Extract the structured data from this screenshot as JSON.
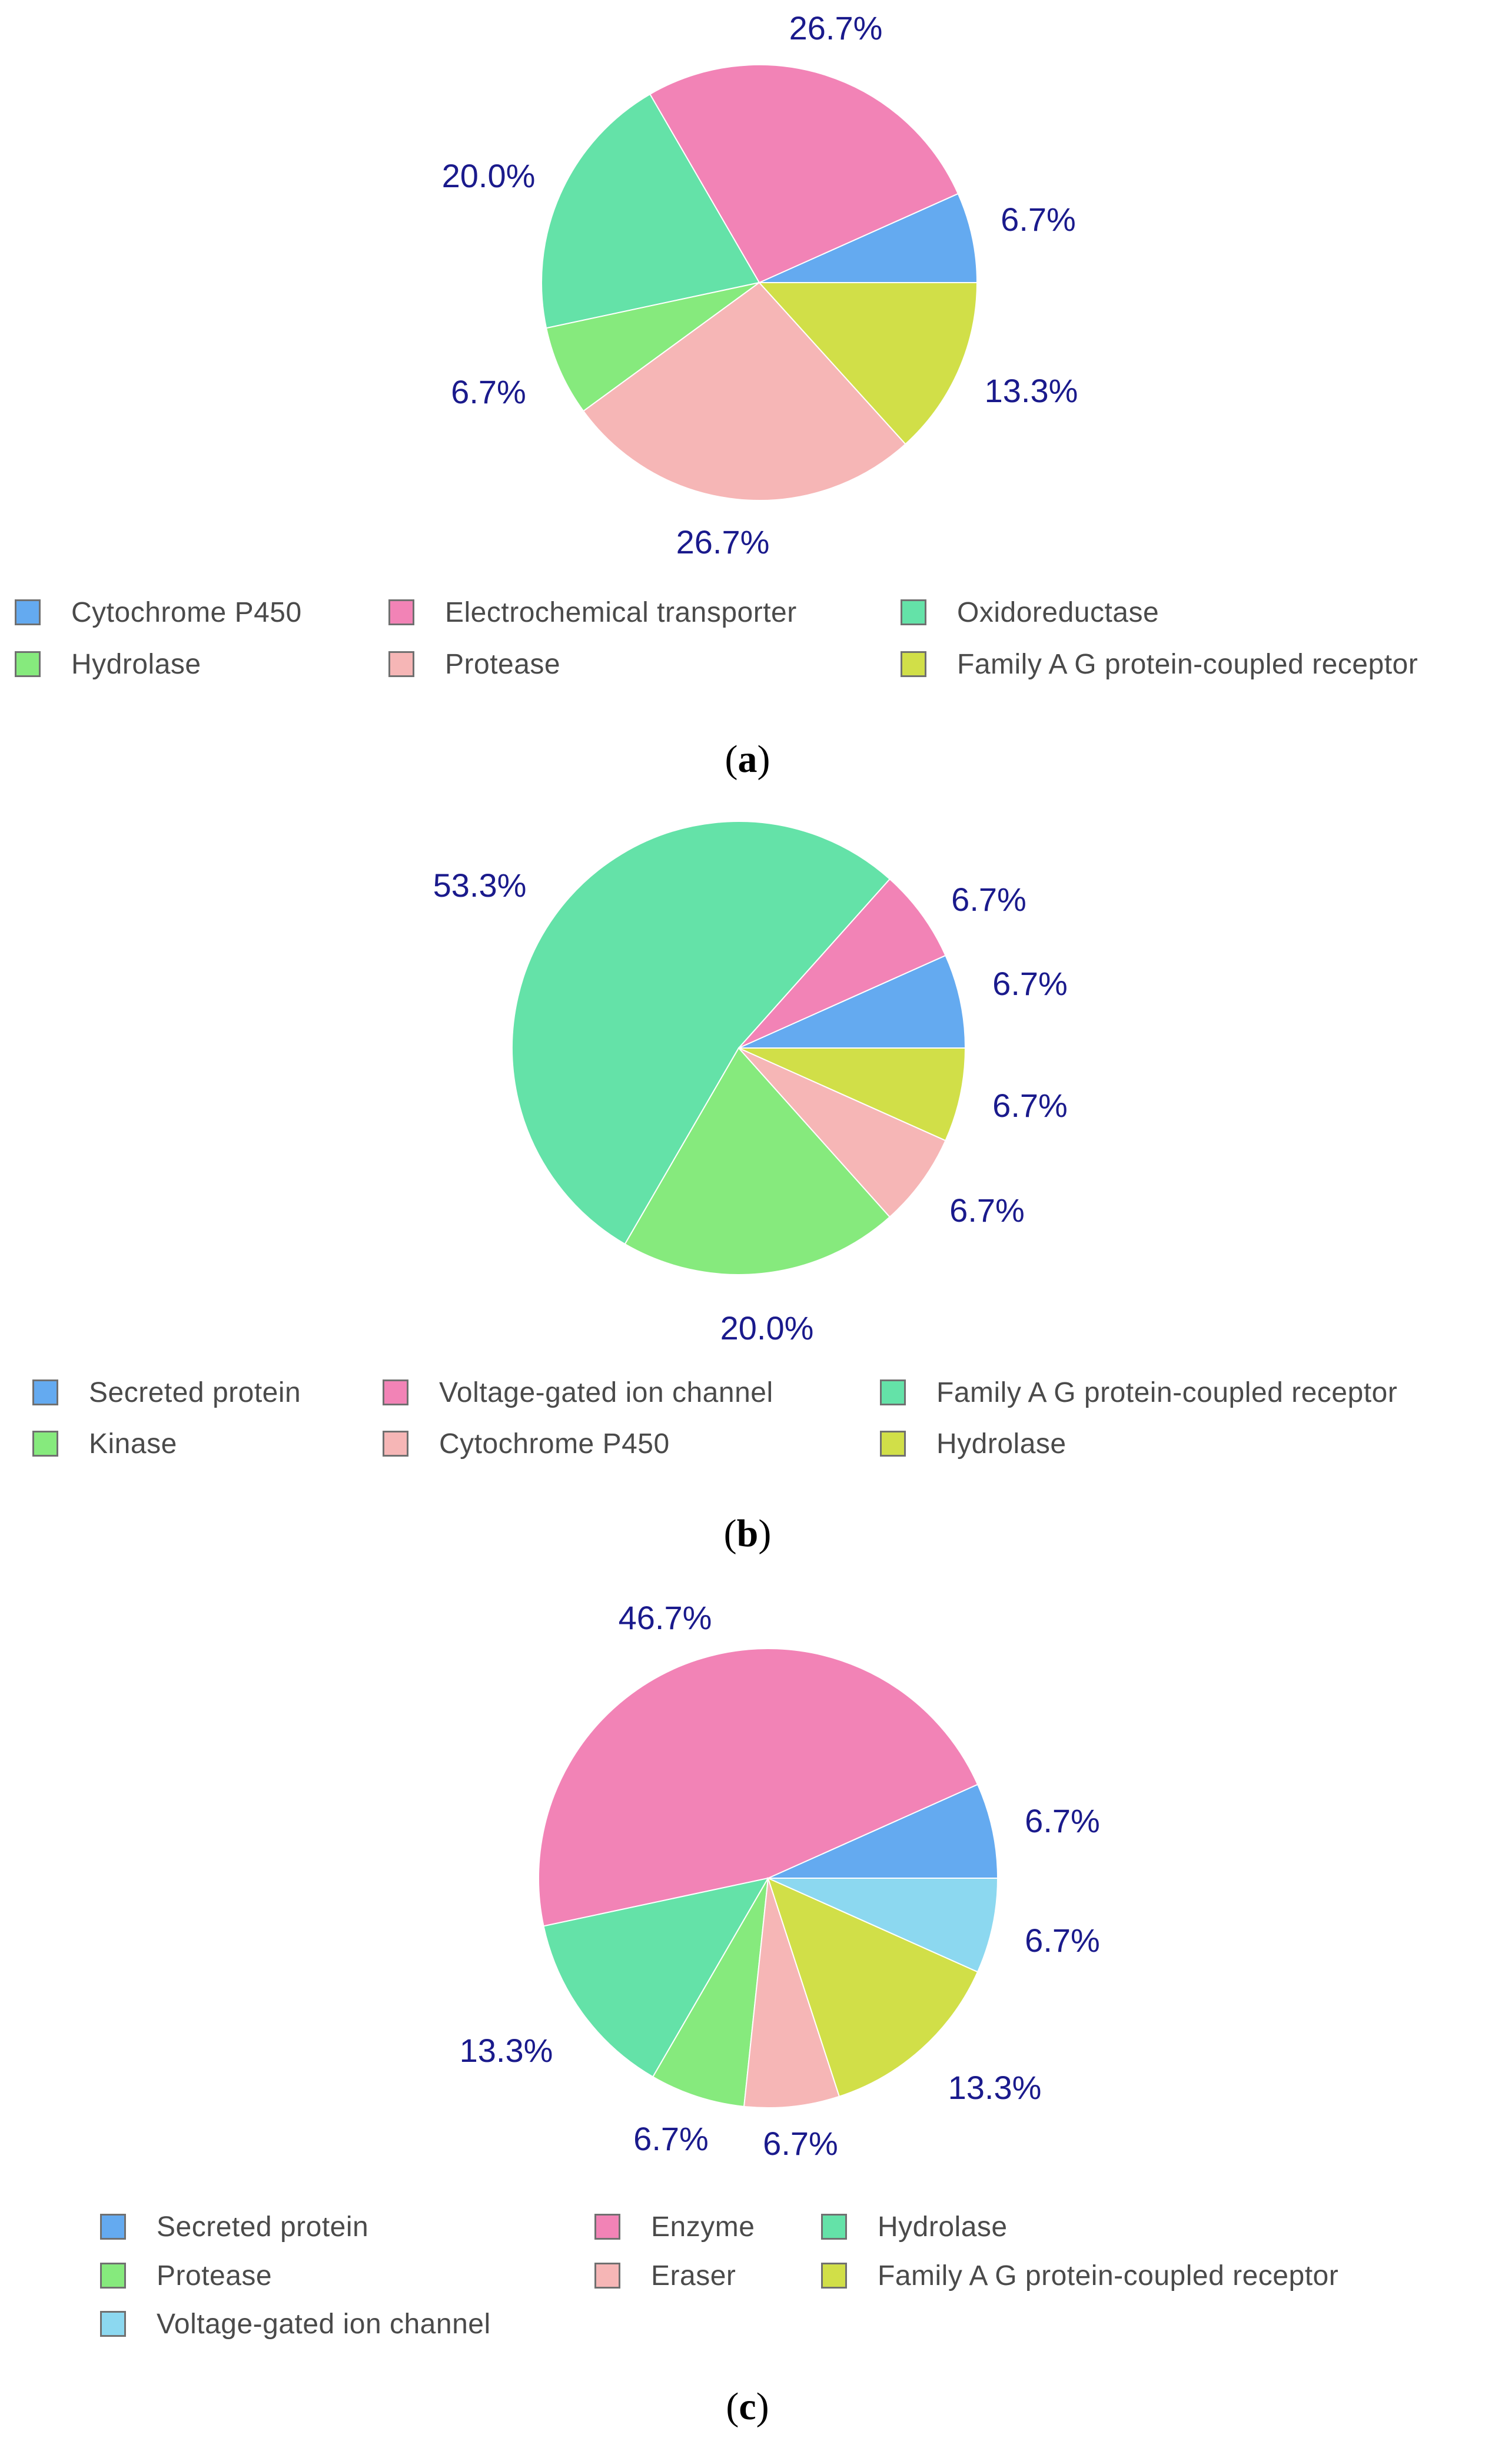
{
  "chart_data": [
    {
      "type": "pie",
      "panel": "a",
      "caption_letter": "a",
      "start": "3 o'clock, counter-clockwise",
      "slices": [
        {
          "name": "Cytochrome P450",
          "value": 6.7,
          "label": "6.7%",
          "color": "#64aaf0"
        },
        {
          "name": "Electrochemical transporter",
          "value": 26.7,
          "label": "26.7%",
          "color": "#f283b6"
        },
        {
          "name": "Oxidoreductase",
          "value": 20.0,
          "label": "20.0%",
          "color": "#64e2a8"
        },
        {
          "name": "Hydrolase",
          "value": 6.7,
          "label": "6.7%",
          "color": "#86ea7d"
        },
        {
          "name": "Protease",
          "value": 26.7,
          "label": "26.7%",
          "color": "#f6b6b6"
        },
        {
          "name": "Family A G protein-coupled receptor",
          "value": 13.3,
          "label": "13.3%",
          "color": "#d1df48"
        }
      ]
    },
    {
      "type": "pie",
      "panel": "b",
      "caption_letter": "b",
      "start": "3 o'clock, counter-clockwise",
      "slices": [
        {
          "name": "Secreted protein",
          "value": 6.7,
          "label": "6.7%",
          "color": "#64aaf0"
        },
        {
          "name": "Voltage-gated ion channel",
          "value": 6.7,
          "label": "6.7%",
          "color": "#f283b6"
        },
        {
          "name": "Family A G protein-coupled receptor",
          "value": 53.3,
          "label": "53.3%",
          "color": "#64e2a8"
        },
        {
          "name": "Kinase",
          "value": 20.0,
          "label": "20.0%",
          "color": "#86ea7d"
        },
        {
          "name": "Cytochrome P450",
          "value": 6.7,
          "label": "6.7%",
          "color": "#f6b6b6"
        },
        {
          "name": "Hydrolase",
          "value": 6.7,
          "label": "6.7%",
          "color": "#d1df48"
        }
      ]
    },
    {
      "type": "pie",
      "panel": "c",
      "caption_letter": "c",
      "start": "3 o'clock, counter-clockwise",
      "slices": [
        {
          "name": "Secreted protein",
          "value": 6.7,
          "label": "6.7%",
          "color": "#64aaf0"
        },
        {
          "name": "Enzyme",
          "value": 46.7,
          "label": "46.7%",
          "color": "#f283b6"
        },
        {
          "name": "Hydrolase",
          "value": 13.3,
          "label": "13.3%",
          "color": "#64e2a8"
        },
        {
          "name": "Protease",
          "value": 6.7,
          "label": "6.7%",
          "color": "#86ea7d"
        },
        {
          "name": "Eraser",
          "value": 6.7,
          "label": "6.7%",
          "color": "#f6b6b6"
        },
        {
          "name": "Family A G protein-coupled receptor",
          "value": 13.3,
          "label": "13.3%",
          "color": "#d1df48"
        },
        {
          "name": "Voltage-gated ion channel",
          "value": 6.7,
          "label": "6.7%",
          "color": "#8cd8f0"
        }
      ]
    }
  ],
  "label_color": "#1a1a8c"
}
